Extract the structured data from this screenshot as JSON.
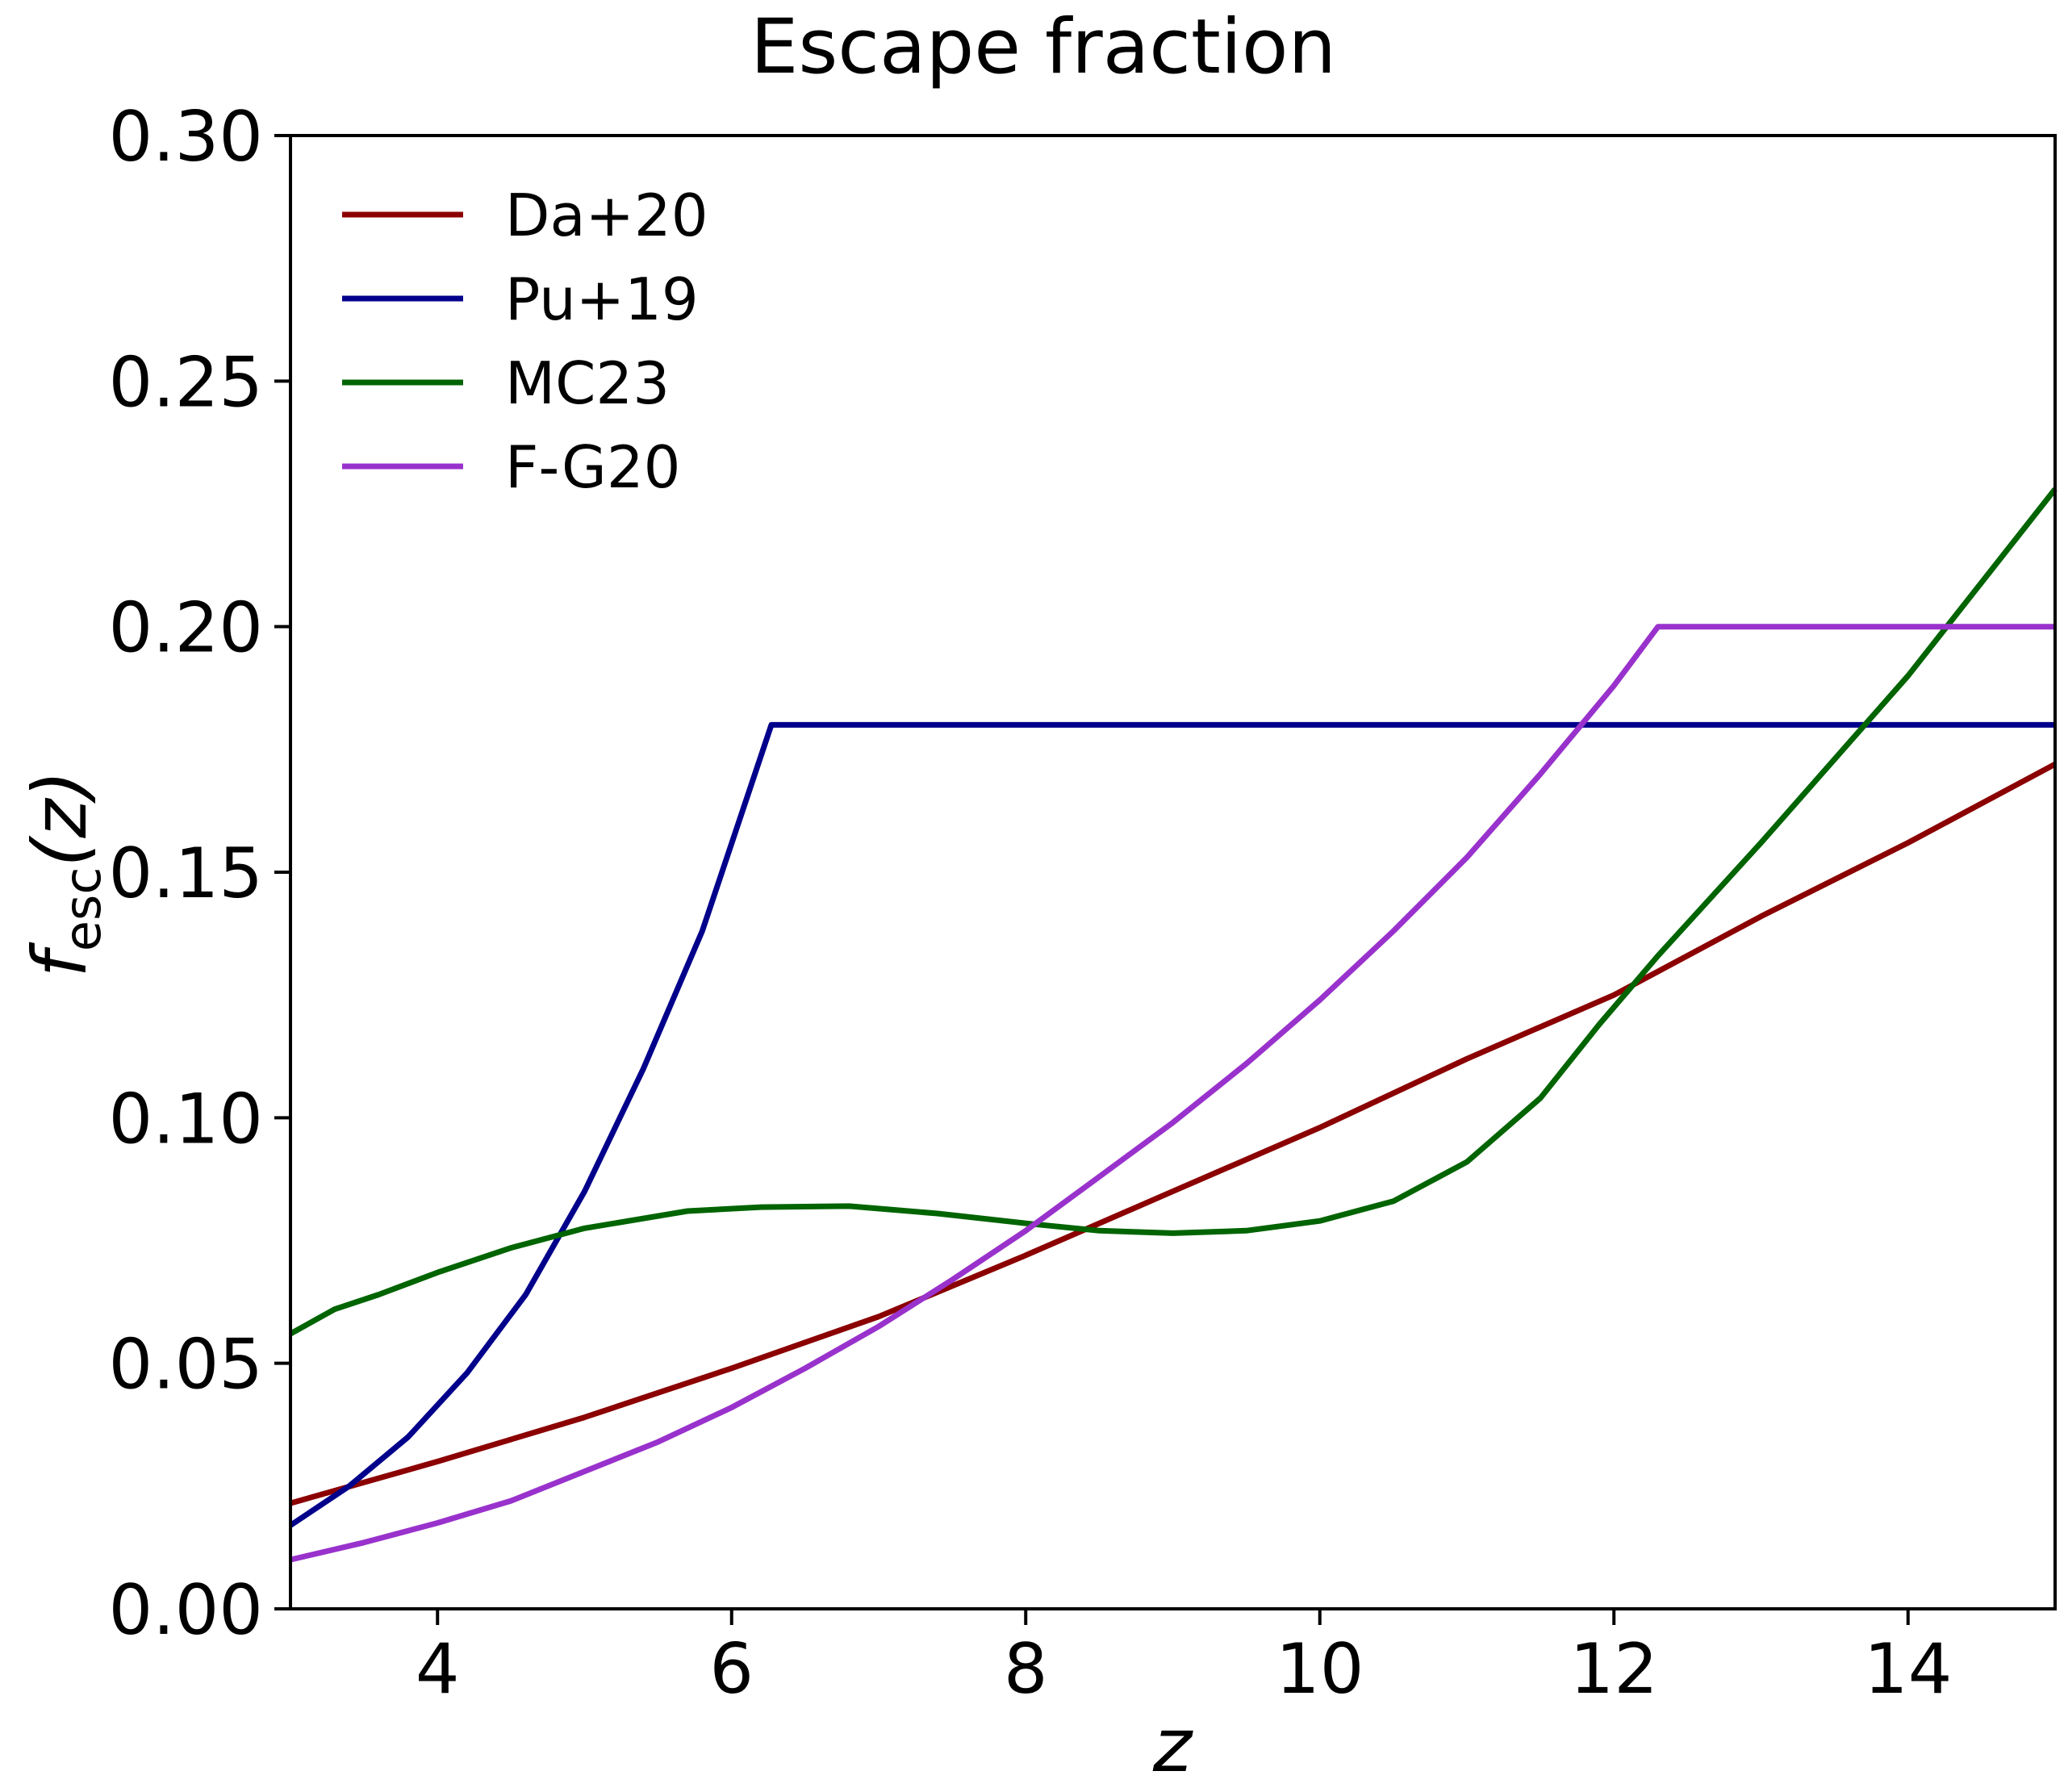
{
  "chart_data": {
    "type": "line",
    "title": "Escape fraction",
    "xlabel": "z",
    "ylabel": {
      "main": "f",
      "sub": "esc",
      "suffix": "(z)"
    },
    "xlim": [
      3,
      15
    ],
    "ylim": [
      0,
      0.3
    ],
    "xticks": [
      4,
      6,
      8,
      10,
      12,
      14
    ],
    "xtick_labels": [
      "4",
      "6",
      "8",
      "10",
      "12",
      "14"
    ],
    "yticks": [
      0,
      0.05,
      0.1,
      0.15,
      0.2,
      0.25,
      0.3
    ],
    "ytick_labels": [
      "0.00",
      "0.05",
      "0.10",
      "0.15",
      "0.20",
      "0.25",
      "0.30"
    ],
    "grid": false,
    "legend_position": "top-left",
    "series": [
      {
        "name": "Da+20",
        "color": "#8b0000",
        "points": [
          [
            3.0,
            0.0215
          ],
          [
            4.0,
            0.03
          ],
          [
            5.0,
            0.039
          ],
          [
            6.0,
            0.049
          ],
          [
            7.0,
            0.0595
          ],
          [
            8.0,
            0.072
          ],
          [
            9.0,
            0.085
          ],
          [
            10.0,
            0.098
          ],
          [
            11.0,
            0.112
          ],
          [
            12.0,
            0.125
          ],
          [
            13.0,
            0.141
          ],
          [
            14.0,
            0.156
          ],
          [
            15.0,
            0.172
          ]
        ]
      },
      {
        "name": "Pu+19",
        "color": "#00008b",
        "points": [
          [
            3.0,
            0.017
          ],
          [
            3.4,
            0.025
          ],
          [
            3.8,
            0.035
          ],
          [
            4.2,
            0.048
          ],
          [
            4.6,
            0.064
          ],
          [
            5.0,
            0.085
          ],
          [
            5.4,
            0.11
          ],
          [
            5.8,
            0.138
          ],
          [
            6.27,
            0.18
          ],
          [
            8.0,
            0.18
          ],
          [
            10.0,
            0.18
          ],
          [
            12.0,
            0.18
          ],
          [
            15.0,
            0.18
          ]
        ]
      },
      {
        "name": "MC23",
        "color": "#006400",
        "points": [
          [
            3.0,
            0.056
          ],
          [
            3.3,
            0.061
          ],
          [
            3.6,
            0.064
          ],
          [
            4.0,
            0.0685
          ],
          [
            4.5,
            0.0735
          ],
          [
            5.0,
            0.0775
          ],
          [
            5.7,
            0.081
          ],
          [
            6.2,
            0.0818
          ],
          [
            6.8,
            0.082
          ],
          [
            7.4,
            0.0805
          ],
          [
            8.0,
            0.0785
          ],
          [
            8.5,
            0.077
          ],
          [
            9.0,
            0.0765
          ],
          [
            9.5,
            0.077
          ],
          [
            10.0,
            0.079
          ],
          [
            10.5,
            0.083
          ],
          [
            11.0,
            0.091
          ],
          [
            11.5,
            0.104
          ],
          [
            11.9,
            0.119
          ],
          [
            12.3,
            0.133
          ],
          [
            13.0,
            0.156
          ],
          [
            14.0,
            0.19
          ],
          [
            15.0,
            0.228
          ]
        ]
      },
      {
        "name": "F-G20",
        "color": "#9932cc",
        "points": [
          [
            3.0,
            0.01
          ],
          [
            3.5,
            0.0135
          ],
          [
            4.0,
            0.0175
          ],
          [
            4.5,
            0.022
          ],
          [
            5.0,
            0.028
          ],
          [
            5.5,
            0.034
          ],
          [
            6.0,
            0.041
          ],
          [
            6.5,
            0.049
          ],
          [
            7.0,
            0.0575
          ],
          [
            7.5,
            0.067
          ],
          [
            8.0,
            0.077
          ],
          [
            8.5,
            0.088
          ],
          [
            9.0,
            0.099
          ],
          [
            9.5,
            0.111
          ],
          [
            10.0,
            0.124
          ],
          [
            10.5,
            0.138
          ],
          [
            11.0,
            0.153
          ],
          [
            11.5,
            0.17
          ],
          [
            12.0,
            0.188
          ],
          [
            12.3,
            0.2
          ],
          [
            13.0,
            0.2
          ],
          [
            14.0,
            0.2
          ],
          [
            15.0,
            0.2
          ]
        ]
      }
    ]
  }
}
